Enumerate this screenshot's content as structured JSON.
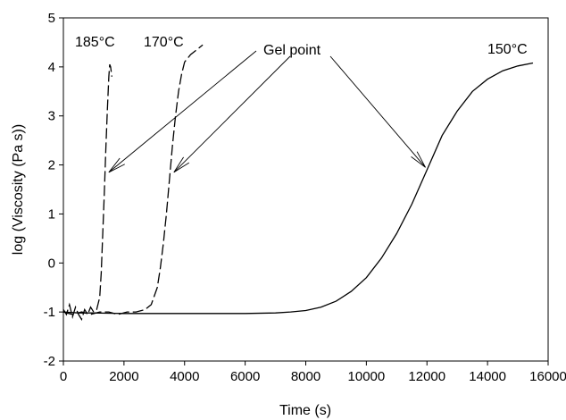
{
  "chart_data": {
    "type": "line",
    "title": "",
    "xlabel": "Time (s)",
    "ylabel": "log (Viscosity (Pa s))",
    "xlim": [
      0,
      16000
    ],
    "ylim": [
      -2,
      5
    ],
    "x_ticks": [
      0,
      2000,
      4000,
      6000,
      8000,
      10000,
      12000,
      14000,
      16000
    ],
    "y_ticks": [
      -2,
      -1,
      0,
      1,
      2,
      3,
      4,
      5
    ],
    "grid": false,
    "legend": "none",
    "series": [
      {
        "name": "185°C",
        "style": "dashed",
        "x": [
          0,
          100,
          200,
          300,
          400,
          500,
          600,
          700,
          800,
          900,
          1000,
          1100,
          1200,
          1250,
          1300,
          1350,
          1400,
          1450,
          1500,
          1530,
          1560,
          1580,
          1600
        ],
        "y": [
          -0.95,
          -1.05,
          -0.85,
          -1.1,
          -0.9,
          -1.05,
          -1.15,
          -0.95,
          -1.05,
          -0.9,
          -1.0,
          -0.95,
          -0.7,
          -0.2,
          0.6,
          1.4,
          2.3,
          3.1,
          3.8,
          4.05,
          4.0,
          3.9,
          3.8
        ]
      },
      {
        "name": "170°C",
        "style": "dashed",
        "x": [
          0,
          300,
          600,
          900,
          1200,
          1500,
          1800,
          2100,
          2400,
          2700,
          2900,
          3100,
          3200,
          3300,
          3400,
          3500,
          3600,
          3700,
          3800,
          3900,
          4000,
          4200,
          4400,
          4600
        ],
        "y": [
          -1.0,
          -1.05,
          -1.0,
          -1.05,
          -1.0,
          -1.0,
          -1.05,
          -1.0,
          -1.0,
          -0.95,
          -0.85,
          -0.5,
          -0.1,
          0.4,
          1.0,
          1.7,
          2.4,
          3.0,
          3.5,
          3.85,
          4.1,
          4.25,
          4.35,
          4.45
        ]
      },
      {
        "name": "150°C",
        "style": "solid",
        "x": [
          0,
          500,
          1000,
          2000,
          3000,
          4000,
          5000,
          6000,
          7000,
          7500,
          8000,
          8500,
          9000,
          9500,
          10000,
          10500,
          11000,
          11500,
          12000,
          12500,
          13000,
          13500,
          14000,
          14500,
          15000,
          15500
        ],
        "y": [
          -1.0,
          -1.02,
          -1.02,
          -1.03,
          -1.03,
          -1.03,
          -1.03,
          -1.03,
          -1.02,
          -1.0,
          -0.97,
          -0.9,
          -0.78,
          -0.58,
          -0.3,
          0.1,
          0.6,
          1.2,
          1.9,
          2.6,
          3.1,
          3.5,
          3.75,
          3.92,
          4.02,
          4.08
        ]
      }
    ],
    "annotations": {
      "gel_point": "Gel point",
      "label_185": "185°C",
      "label_170": "170°C",
      "label_150": "150°C"
    }
  }
}
